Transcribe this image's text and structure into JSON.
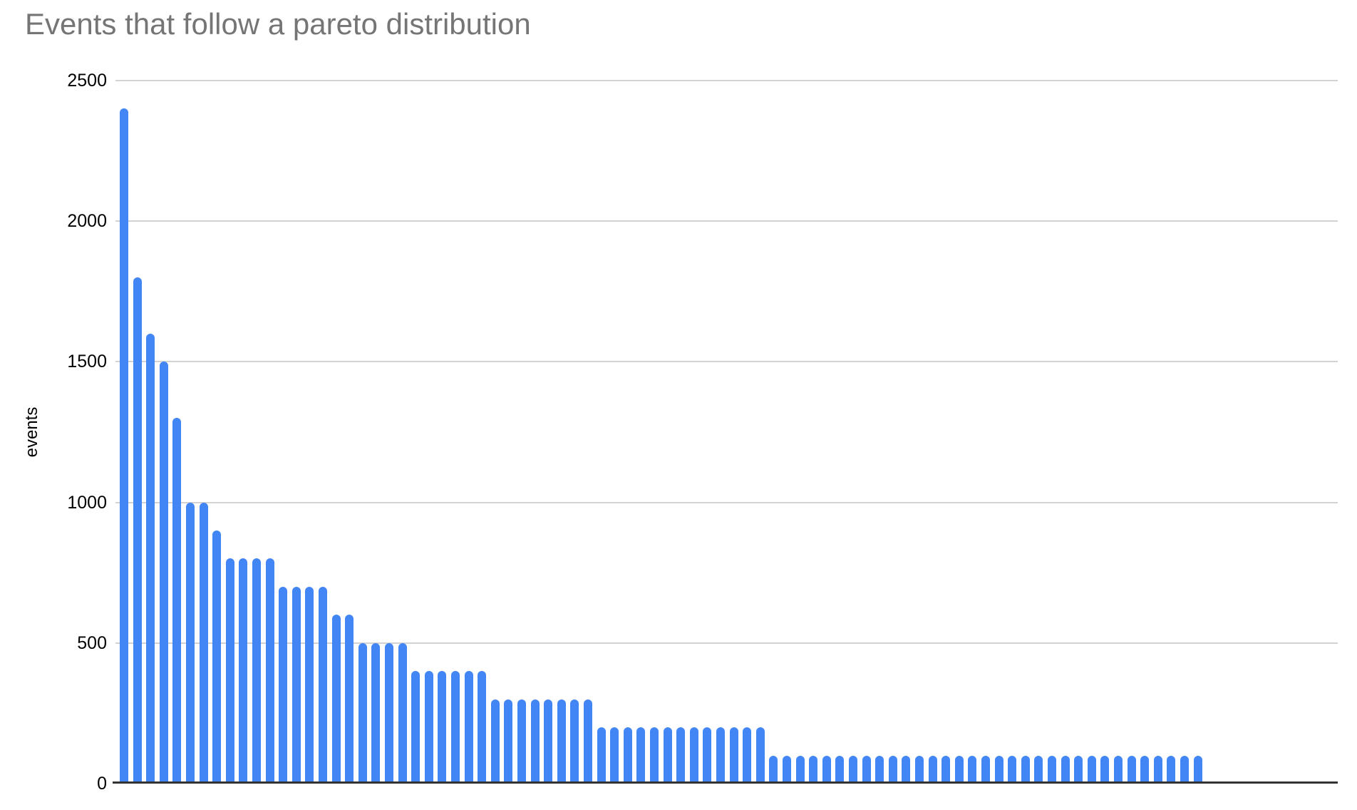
{
  "chart": {
    "title": "Events that follow a pareto distribution",
    "y_axis": {
      "label": "events",
      "tick_labels": [
        "2500",
        "2000",
        "1500",
        "1000",
        "500",
        "0"
      ]
    },
    "x_axis": {
      "tick_labels": []
    }
  },
  "chart_data": {
    "type": "bar",
    "title": "Events that follow a pareto distribution",
    "xlabel": "",
    "ylabel": "events",
    "ylim": [
      0,
      2500
    ],
    "y_ticks": [
      2500,
      2000,
      1500,
      1000,
      500,
      0
    ],
    "grid": "horizontal",
    "legend": "none",
    "num_bars": 82,
    "categories": [],
    "values": [
      2400,
      1800,
      1600,
      1500,
      1300,
      1000,
      1000,
      900,
      800,
      800,
      800,
      800,
      700,
      700,
      700,
      700,
      600,
      600,
      500,
      500,
      500,
      500,
      400,
      400,
      400,
      400,
      400,
      400,
      300,
      300,
      300,
      300,
      300,
      300,
      300,
      300,
      200,
      200,
      200,
      200,
      200,
      200,
      200,
      200,
      200,
      200,
      200,
      200,
      200,
      100,
      100,
      100,
      100,
      100,
      100,
      100,
      100,
      100,
      100,
      100,
      100,
      100,
      100,
      100,
      100,
      100,
      100,
      100,
      100,
      100,
      100,
      100,
      100,
      100,
      100,
      100,
      100,
      100,
      100,
      100,
      100,
      100
    ]
  },
  "colors": {
    "bar": "#4285f4",
    "title_text": "#757575",
    "axis_text": "#000000",
    "gridline": "#d2d2d2",
    "axis_line": "#333333",
    "background": "#ffffff"
  }
}
